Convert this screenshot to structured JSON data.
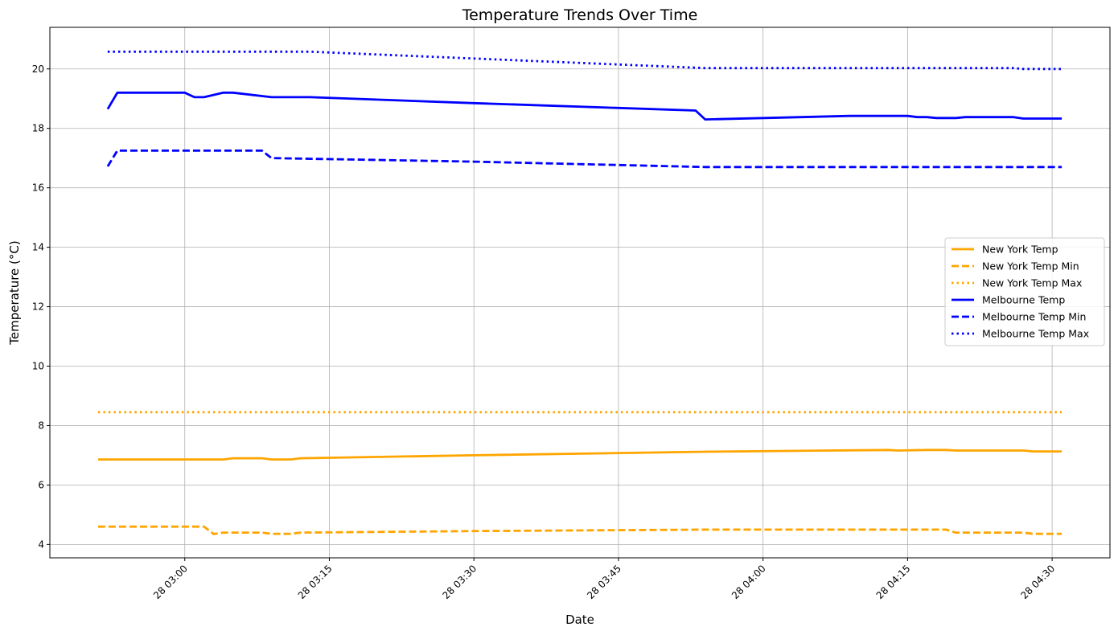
{
  "chart_data": {
    "type": "line",
    "title": "Temperature Trends Over Time",
    "xlabel": "Date",
    "ylabel": "Temperature (°C)",
    "x_ticks": [
      "28 03:00",
      "28 03:15",
      "28 03:30",
      "28 03:45",
      "28 04:00",
      "28 04:15",
      "28 04:30"
    ],
    "xlim": [
      "02:46",
      "04:36"
    ],
    "ylim": [
      3.55,
      21.4
    ],
    "y_ticks": [
      4,
      6,
      8,
      10,
      12,
      14,
      16,
      18,
      20
    ],
    "grid": true,
    "legend_position": "center-right",
    "series": [
      {
        "name": "New York Temp",
        "color": "#ffa500",
        "style": "solid",
        "x": [
          "02:51",
          "03:04",
          "03:05",
          "03:08",
          "03:09",
          "03:11",
          "03:12",
          "03:30",
          "03:54",
          "04:13",
          "04:14",
          "04:17",
          "04:19",
          "04:20",
          "04:27",
          "04:28",
          "04:31"
        ],
        "y": [
          6.86,
          6.86,
          6.9,
          6.9,
          6.86,
          6.86,
          6.9,
          7.0,
          7.12,
          7.18,
          7.16,
          7.18,
          7.18,
          7.16,
          7.16,
          7.13,
          7.13
        ]
      },
      {
        "name": "New York Temp Min",
        "color": "#ffa500",
        "style": "dashed",
        "x": [
          "02:51",
          "03:02",
          "03:03",
          "03:04",
          "03:08",
          "03:09",
          "03:11",
          "03:12",
          "03:30",
          "03:54",
          "04:19",
          "04:20",
          "04:27",
          "04:28",
          "04:31"
        ],
        "y": [
          4.6,
          4.6,
          4.35,
          4.4,
          4.4,
          4.36,
          4.36,
          4.4,
          4.45,
          4.5,
          4.5,
          4.4,
          4.4,
          4.36,
          4.36
        ]
      },
      {
        "name": "New York Temp Max",
        "color": "#ffa500",
        "style": "dotted",
        "x": [
          "02:51",
          "04:31"
        ],
        "y": [
          8.45,
          8.45
        ]
      },
      {
        "name": "Melbourne Temp",
        "color": "#0000ff",
        "style": "solid",
        "x": [
          "02:52",
          "02:53",
          "03:00",
          "03:01",
          "03:02",
          "03:04",
          "03:05",
          "03:09",
          "03:10",
          "03:12",
          "03:13",
          "03:30",
          "03:53",
          "03:54",
          "04:09",
          "04:15",
          "04:16",
          "04:17",
          "04:18",
          "04:20",
          "04:21",
          "04:26",
          "04:27",
          "04:31"
        ],
        "y": [
          18.65,
          19.2,
          19.2,
          19.05,
          19.05,
          19.2,
          19.2,
          19.05,
          19.05,
          19.05,
          19.05,
          18.85,
          18.6,
          18.3,
          18.42,
          18.42,
          18.38,
          18.38,
          18.35,
          18.35,
          18.38,
          18.38,
          18.33,
          18.33
        ]
      },
      {
        "name": "Melbourne Temp Min",
        "color": "#0000ff",
        "style": "dashed",
        "x": [
          "02:52",
          "02:53",
          "03:08",
          "03:09",
          "03:30",
          "03:54",
          "04:31"
        ],
        "y": [
          16.72,
          17.25,
          17.25,
          17.0,
          16.88,
          16.7,
          16.7
        ]
      },
      {
        "name": "Melbourne Temp Max",
        "color": "#0000ff",
        "style": "dotted",
        "x": [
          "02:52",
          "03:13",
          "03:30",
          "03:54",
          "04:26",
          "04:27",
          "04:31"
        ],
        "y": [
          20.58,
          20.58,
          20.35,
          20.03,
          20.03,
          20.0,
          20.0
        ]
      }
    ]
  }
}
